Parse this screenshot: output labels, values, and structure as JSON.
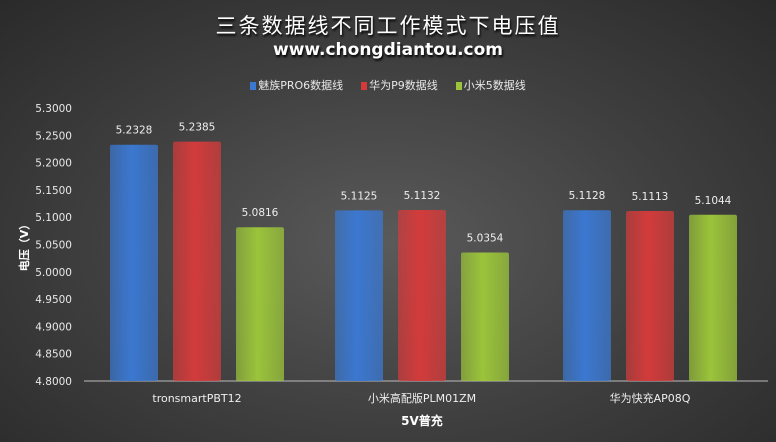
{
  "chart_data": {
    "type": "bar",
    "title": "三条数据线不同工作模式下电压值",
    "subtitle": "www.chongdiantou.com",
    "xlabel": "5V普充",
    "ylabel": "电压（V）",
    "categories": [
      "tronsmartPBT12",
      "小米高配版PLM01ZM",
      "华为快充AP08Q"
    ],
    "series": [
      {
        "name": "魅族PRO6数据线",
        "color": "#3b78d0",
        "values": [
          5.2328,
          5.1125,
          5.1128
        ]
      },
      {
        "name": "华为P9数据线",
        "color": "#d33b3b",
        "values": [
          5.2385,
          5.1132,
          5.1113
        ]
      },
      {
        "name": "小米5数据线",
        "color": "#9bc43a",
        "values": [
          5.0816,
          5.0354,
          5.1044
        ]
      }
    ],
    "ylim": [
      4.8,
      5.3
    ],
    "yticks": [
      "5.3000",
      "5.2500",
      "5.2000",
      "5.1500",
      "5.1000",
      "5.0500",
      "5.0000",
      "4.9500",
      "4.9000",
      "4.8500",
      "4.8000"
    ],
    "grid": false,
    "legend": "top"
  }
}
